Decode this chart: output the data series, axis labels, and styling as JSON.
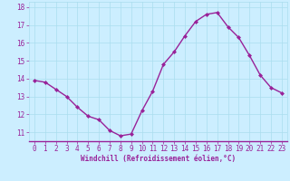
{
  "x": [
    0,
    1,
    2,
    3,
    4,
    5,
    6,
    7,
    8,
    9,
    10,
    11,
    12,
    13,
    14,
    15,
    16,
    17,
    18,
    19,
    20,
    21,
    22,
    23
  ],
  "y": [
    13.9,
    13.8,
    13.4,
    13.0,
    12.4,
    11.9,
    11.7,
    11.1,
    10.8,
    10.9,
    12.2,
    13.3,
    14.8,
    15.5,
    16.4,
    17.2,
    17.6,
    17.7,
    16.9,
    16.3,
    15.3,
    14.2,
    13.5,
    13.2
  ],
  "line_color": "#992299",
  "marker": "D",
  "marker_size": 2.0,
  "bg_color": "#cceeff",
  "grid_color": "#aaddee",
  "xlabel": "Windchill (Refroidissement éolien,°C)",
  "xlabel_color": "#992299",
  "tick_color": "#992299",
  "xlim": [
    -0.5,
    23.5
  ],
  "ylim": [
    10.5,
    18.3
  ],
  "yticks": [
    11,
    12,
    13,
    14,
    15,
    16,
    17,
    18
  ],
  "xticks": [
    0,
    1,
    2,
    3,
    4,
    5,
    6,
    7,
    8,
    9,
    10,
    11,
    12,
    13,
    14,
    15,
    16,
    17,
    18,
    19,
    20,
    21,
    22,
    23
  ],
  "linewidth": 1.0,
  "xlabel_fontsize": 5.5,
  "tick_fontsize": 5.5
}
